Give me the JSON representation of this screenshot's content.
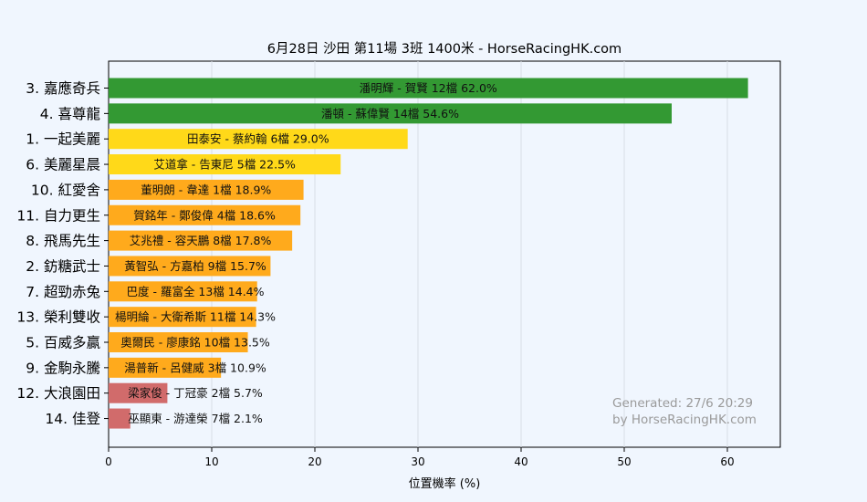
{
  "chart_data": {
    "type": "bar",
    "orientation": "horizontal",
    "title": "6月28日  沙田  第11場  3班  1400米 - HorseRacingHK.com",
    "xlabel": "位置機率 (%)",
    "ylabel": "",
    "xlim": [
      0,
      65
    ],
    "xticks": [
      0,
      10,
      20,
      30,
      40,
      50,
      60
    ],
    "grid": "vertical",
    "categories": [
      "3. 嘉應奇兵",
      "4. 喜尊龍",
      "1. 一起美麗",
      "6. 美麗星晨",
      "10. 紅愛舍",
      "11. 自力更生",
      "8. 飛馬先生",
      "2. 鈁糖武士",
      "7. 超勁赤兔",
      "13. 榮利雙收",
      "5. 百威多贏",
      "9. 金駒永騰",
      "12. 大浪園田",
      "14. 佳登"
    ],
    "values": [
      62.0,
      54.6,
      29.0,
      22.5,
      18.9,
      18.6,
      17.8,
      15.7,
      14.4,
      14.3,
      13.5,
      10.9,
      5.7,
      2.1
    ],
    "bar_labels": [
      "潘明輝 - 賀賢 12檔  62.0%",
      "潘頓 - 蘇偉賢 14檔  54.6%",
      "田泰安 - 蔡約翰 6檔  29.0%",
      "艾道拿 - 告東尼 5檔  22.5%",
      "董明朗 - 韋達 1檔  18.9%",
      "賀銘年 - 鄭俊偉 4檔  18.6%",
      "艾兆禮 - 容天鵬 8檔  17.8%",
      "黃智弘 - 方嘉柏 9檔  15.7%",
      "巴度 - 羅富全 13檔  14.4%",
      "楊明綸 - 大衛希斯 11檔  14.3%",
      "奧爾民 - 廖康銘 10檔  13.5%",
      "湯普新 - 呂健威 3檔  10.9%",
      "梁家俊 - 丁冠豪 2檔  5.7%",
      "巫顯東 - 游達榮 7檔  2.1%"
    ],
    "bar_colors": [
      "#339933",
      "#339933",
      "#ffd919",
      "#ffd919",
      "#ffaa1c",
      "#ffaa1c",
      "#ffaa1c",
      "#ffaa1c",
      "#ffaa1c",
      "#ffaa1c",
      "#ffaa1c",
      "#ffaa1c",
      "#d16b6b",
      "#d16b6b"
    ],
    "watermark": [
      "Generated: 27/6 20:29",
      "by HorseRacingHK.com"
    ]
  }
}
